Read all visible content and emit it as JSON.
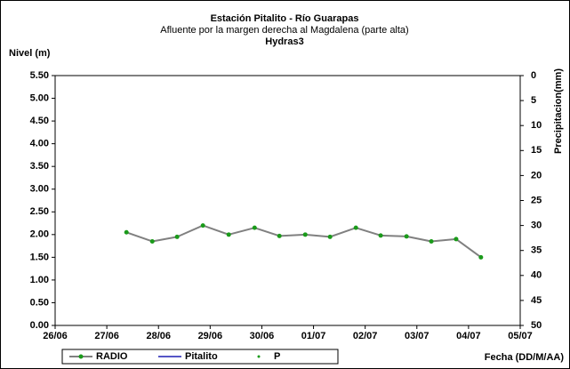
{
  "chart_data": {
    "type": "line",
    "title": "Estación Pitalito - Río Guarapas",
    "subtitle": "Afluente por la margen derecha al Magdalena (parte alta)",
    "source": "Hydras3",
    "y_label": "Nivel (m)",
    "y2_label": "Precipitacion(mm)",
    "x_label": "Fecha (DD/M/AA)",
    "x": [
      1.38,
      1.88,
      2.36,
      2.86,
      3.36,
      3.86,
      4.34,
      4.84,
      5.32,
      5.82,
      6.3,
      6.8,
      7.28,
      7.76,
      8.24
    ],
    "series": [
      {
        "name": "RADIO",
        "color": "#808080",
        "marker_color": "#1a9a1a",
        "values": [
          2.05,
          1.85,
          1.95,
          2.2,
          2.0,
          2.15,
          1.97,
          2.0,
          1.95,
          2.15,
          1.98,
          1.96,
          1.85,
          1.9,
          1.5
        ]
      },
      {
        "name": "Pitalito",
        "color": "#1f1fb4",
        "values": [
          null,
          null,
          null,
          null,
          null,
          null,
          null,
          null,
          null,
          null,
          null,
          null,
          null,
          null,
          null
        ]
      },
      {
        "name": "P",
        "color": "#1a9a1a",
        "axis": "y2",
        "values": [
          null,
          null,
          null,
          null,
          null,
          null,
          null,
          null,
          null,
          null,
          null,
          null,
          null,
          null,
          null
        ]
      }
    ],
    "xlim": [
      0,
      9
    ],
    "xticks": [
      {
        "value": 0,
        "label": "26/06"
      },
      {
        "value": 1,
        "label": "27/06"
      },
      {
        "value": 2,
        "label": "28/06"
      },
      {
        "value": 3,
        "label": "29/06"
      },
      {
        "value": 4,
        "label": "30/06"
      },
      {
        "value": 5,
        "label": "01/07"
      },
      {
        "value": 6,
        "label": "02/07"
      },
      {
        "value": 7,
        "label": "03/07"
      },
      {
        "value": 8,
        "label": "04/07"
      },
      {
        "value": 9,
        "label": "05/07"
      }
    ],
    "ylim": [
      0,
      5.5
    ],
    "yticks": [
      {
        "value": 0,
        "label": "0.00"
      },
      {
        "value": 0.5,
        "label": "0.50"
      },
      {
        "value": 1,
        "label": "1.00"
      },
      {
        "value": 1.5,
        "label": "1.50"
      },
      {
        "value": 2,
        "label": "2.00"
      },
      {
        "value": 2.5,
        "label": "2.50"
      },
      {
        "value": 3,
        "label": "3.00"
      },
      {
        "value": 3.5,
        "label": "3.50"
      },
      {
        "value": 4,
        "label": "4.00"
      },
      {
        "value": 4.5,
        "label": "4.50"
      },
      {
        "value": 5,
        "label": "5.00"
      },
      {
        "value": 5.5,
        "label": "5.50"
      }
    ],
    "y2lim": [
      50,
      0
    ],
    "y2ticks": [
      0,
      5,
      10,
      15,
      20,
      25,
      30,
      35,
      40,
      45,
      50
    ],
    "legend": "bottom"
  }
}
